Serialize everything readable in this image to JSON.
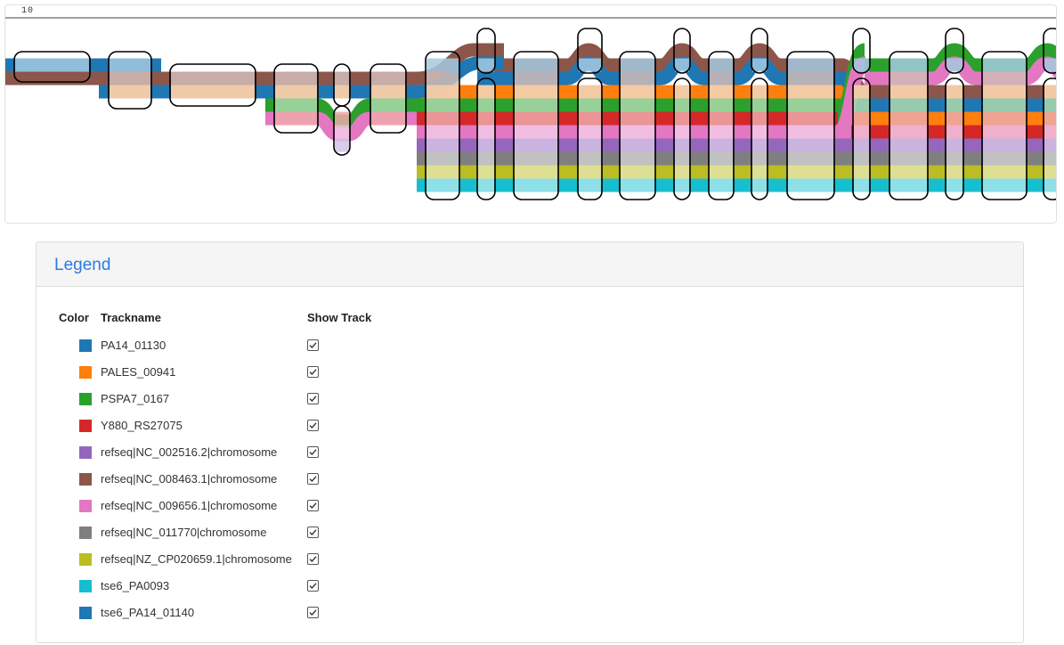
{
  "graph": {
    "ruler_label": "10",
    "track_colors": {
      "blue": "#1f77b4",
      "orange": "#ff7f0e",
      "green": "#2ca02c",
      "red": "#d62728",
      "purple": "#9467bd",
      "brown": "#8c564b",
      "pink": "#e377c2",
      "gray": "#7f7f7f",
      "olive": "#bcbd22",
      "cyan": "#17becf"
    }
  },
  "legend": {
    "title": "Legend",
    "headers": {
      "color": "Color",
      "trackname": "Trackname",
      "show_track": "Show Track"
    },
    "tracks": [
      {
        "name": "PA14_01130",
        "color": "#1f77b4",
        "shown": true
      },
      {
        "name": "PALES_00941",
        "color": "#ff7f0e",
        "shown": true
      },
      {
        "name": "PSPA7_0167",
        "color": "#2ca02c",
        "shown": true
      },
      {
        "name": "Y880_RS27075",
        "color": "#d62728",
        "shown": true
      },
      {
        "name": "refseq|NC_002516.2|chromosome",
        "color": "#9467bd",
        "shown": true
      },
      {
        "name": "refseq|NC_008463.1|chromosome",
        "color": "#8c564b",
        "shown": true
      },
      {
        "name": "refseq|NC_009656.1|chromosome",
        "color": "#e377c2",
        "shown": true
      },
      {
        "name": "refseq|NC_011770|chromosome",
        "color": "#7f7f7f",
        "shown": true
      },
      {
        "name": "refseq|NZ_CP020659.1|chromosome",
        "color": "#bcbd22",
        "shown": true
      },
      {
        "name": "tse6_PA0093",
        "color": "#17becf",
        "shown": true
      },
      {
        "name": "tse6_PA14_01140",
        "color": "#1f77b4",
        "shown": true
      }
    ]
  }
}
